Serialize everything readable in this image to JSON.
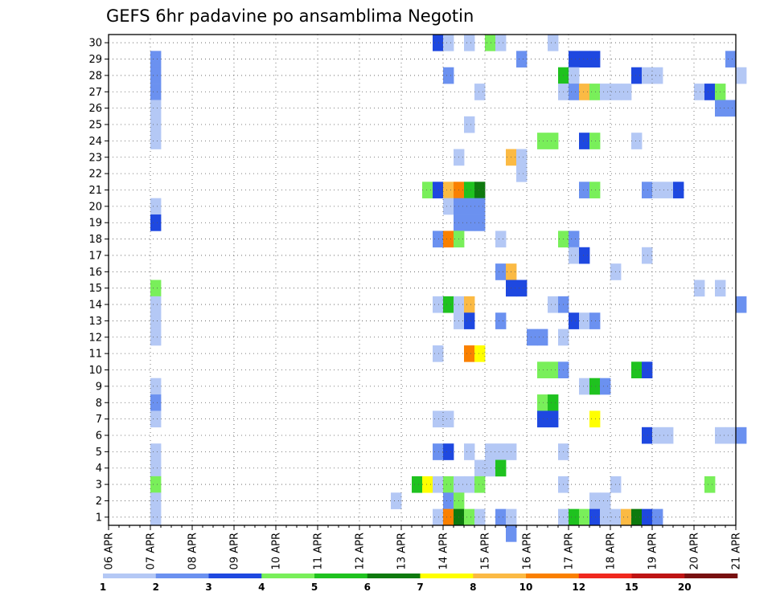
{
  "chart_data": {
    "type": "heatmap",
    "title": "GEFS 6hr padavine po ansamblima Negotin",
    "xlabel": "",
    "ylabel": "",
    "x_ticks": [
      "06 APR",
      "07 APR",
      "08 APR",
      "09 APR",
      "10 APR",
      "11 APR",
      "12 APR",
      "13 APR",
      "14 APR",
      "15 APR",
      "16 APR",
      "17 APR",
      "18 APR",
      "19 APR",
      "20 APR",
      "21 APR"
    ],
    "y_ticks": [
      "1",
      "2",
      "3",
      "4",
      "5",
      "6",
      "7",
      "8",
      "9",
      "10",
      "11",
      "12",
      "13",
      "14",
      "15",
      "16",
      "17",
      "18",
      "19",
      "20",
      "21",
      "22",
      "23",
      "24",
      "25",
      "26",
      "27",
      "28",
      "29",
      "30"
    ],
    "xlim": [
      "06 APR 00",
      "21 APR 00"
    ],
    "ylim": [
      0.5,
      30.5
    ],
    "grid": true,
    "colorbar": {
      "placement": "bottom",
      "labels": [
        "1",
        "2",
        "3",
        "4",
        "5",
        "6",
        "7",
        "8",
        "10",
        "12",
        "15",
        "20"
      ],
      "colors": [
        "#b4c8f5",
        "#6b91f0",
        "#1e48e0",
        "#79ef5a",
        "#1fc21f",
        "#0e7a0e",
        "#ffff00",
        "#fbba44",
        "#fa8000",
        "#f0281e",
        "#be1414",
        "#781010"
      ]
    },
    "cells": [
      {
        "m": 30,
        "t": "13 APR 18",
        "c": 2
      },
      {
        "m": 30,
        "t": "14 APR 00",
        "c": 0
      },
      {
        "m": 30,
        "t": "14 APR 12",
        "c": 0
      },
      {
        "m": 30,
        "t": "15 APR 00",
        "c": 3
      },
      {
        "m": 30,
        "t": "15 APR 06",
        "c": 0
      },
      {
        "m": 30,
        "t": "16 APR 12",
        "c": 0
      },
      {
        "m": 29,
        "t": "07 APR 00",
        "c": 1
      },
      {
        "m": 29,
        "t": "15 APR 18",
        "c": 1
      },
      {
        "m": 29,
        "t": "17 APR 00",
        "c": 2
      },
      {
        "m": 29,
        "t": "17 APR 06",
        "c": 2
      },
      {
        "m": 29,
        "t": "17 APR 12",
        "c": 2
      },
      {
        "m": 29,
        "t": "20 APR 18",
        "c": 1
      },
      {
        "m": 28,
        "t": "07 APR 00",
        "c": 1
      },
      {
        "m": 28,
        "t": "14 APR 00",
        "c": 1
      },
      {
        "m": 28,
        "t": "16 APR 18",
        "c": 4
      },
      {
        "m": 28,
        "t": "17 APR 00",
        "c": 0
      },
      {
        "m": 28,
        "t": "18 APR 12",
        "c": 2
      },
      {
        "m": 28,
        "t": "18 APR 18",
        "c": 0
      },
      {
        "m": 28,
        "t": "19 APR 00",
        "c": 0
      },
      {
        "m": 28,
        "t": "21 APR 00",
        "c": 0
      },
      {
        "m": 27,
        "t": "07 APR 00",
        "c": 1
      },
      {
        "m": 27,
        "t": "14 APR 18",
        "c": 0
      },
      {
        "m": 27,
        "t": "16 APR 18",
        "c": 0
      },
      {
        "m": 27,
        "t": "17 APR 00",
        "c": 1
      },
      {
        "m": 27,
        "t": "17 APR 06",
        "c": 7
      },
      {
        "m": 27,
        "t": "17 APR 12",
        "c": 3
      },
      {
        "m": 27,
        "t": "17 APR 18",
        "c": 0
      },
      {
        "m": 27,
        "t": "18 APR 00",
        "c": 0
      },
      {
        "m": 27,
        "t": "18 APR 06",
        "c": 0
      },
      {
        "m": 27,
        "t": "20 APR 00",
        "c": 0
      },
      {
        "m": 27,
        "t": "20 APR 06",
        "c": 2
      },
      {
        "m": 27,
        "t": "20 APR 12",
        "c": 3
      },
      {
        "m": 26,
        "t": "07 APR 00",
        "c": 0
      },
      {
        "m": 26,
        "t": "20 APR 12",
        "c": 1
      },
      {
        "m": 26,
        "t": "20 APR 18",
        "c": 1
      },
      {
        "m": 25,
        "t": "07 APR 00",
        "c": 0
      },
      {
        "m": 25,
        "t": "14 APR 12",
        "c": 0
      },
      {
        "m": 24,
        "t": "07 APR 00",
        "c": 0
      },
      {
        "m": 24,
        "t": "16 APR 06",
        "c": 3
      },
      {
        "m": 24,
        "t": "16 APR 12",
        "c": 3
      },
      {
        "m": 24,
        "t": "17 APR 06",
        "c": 2
      },
      {
        "m": 24,
        "t": "17 APR 12",
        "c": 3
      },
      {
        "m": 24,
        "t": "18 APR 12",
        "c": 0
      },
      {
        "m": 23,
        "t": "14 APR 06",
        "c": 0
      },
      {
        "m": 23,
        "t": "15 APR 12",
        "c": 7
      },
      {
        "m": 23,
        "t": "15 APR 18",
        "c": 0
      },
      {
        "m": 22,
        "t": "15 APR 18",
        "c": 0
      },
      {
        "m": 21,
        "t": "13 APR 12",
        "c": 3
      },
      {
        "m": 21,
        "t": "13 APR 18",
        "c": 2
      },
      {
        "m": 21,
        "t": "14 APR 00",
        "c": 7
      },
      {
        "m": 21,
        "t": "14 APR 06",
        "c": 8
      },
      {
        "m": 21,
        "t": "14 APR 12",
        "c": 4
      },
      {
        "m": 21,
        "t": "14 APR 18",
        "c": 5
      },
      {
        "m": 21,
        "t": "17 APR 06",
        "c": 1
      },
      {
        "m": 21,
        "t": "17 APR 12",
        "c": 3
      },
      {
        "m": 21,
        "t": "18 APR 18",
        "c": 1
      },
      {
        "m": 21,
        "t": "19 APR 00",
        "c": 0
      },
      {
        "m": 21,
        "t": "19 APR 06",
        "c": 0
      },
      {
        "m": 21,
        "t": "19 APR 12",
        "c": 2
      },
      {
        "m": 20,
        "t": "07 APR 00",
        "c": 0
      },
      {
        "m": 20,
        "t": "14 APR 00",
        "c": 0
      },
      {
        "m": 20,
        "t": "14 APR 06",
        "c": 1
      },
      {
        "m": 20,
        "t": "14 APR 12",
        "c": 1
      },
      {
        "m": 20,
        "t": "14 APR 18",
        "c": 1
      },
      {
        "m": 19,
        "t": "07 APR 00",
        "c": 2
      },
      {
        "m": 19,
        "t": "14 APR 06",
        "c": 1
      },
      {
        "m": 19,
        "t": "14 APR 12",
        "c": 1
      },
      {
        "m": 19,
        "t": "14 APR 18",
        "c": 1
      },
      {
        "m": 18,
        "t": "13 APR 18",
        "c": 1
      },
      {
        "m": 18,
        "t": "14 APR 00",
        "c": 8
      },
      {
        "m": 18,
        "t": "14 APR 06",
        "c": 3
      },
      {
        "m": 18,
        "t": "15 APR 06",
        "c": 0
      },
      {
        "m": 18,
        "t": "16 APR 18",
        "c": 3
      },
      {
        "m": 18,
        "t": "17 APR 00",
        "c": 1
      },
      {
        "m": 17,
        "t": "17 APR 00",
        "c": 0
      },
      {
        "m": 17,
        "t": "17 APR 06",
        "c": 2
      },
      {
        "m": 17,
        "t": "18 APR 18",
        "c": 0
      },
      {
        "m": 16,
        "t": "15 APR 06",
        "c": 1
      },
      {
        "m": 16,
        "t": "15 APR 12",
        "c": 7
      },
      {
        "m": 16,
        "t": "18 APR 00",
        "c": 0
      },
      {
        "m": 15,
        "t": "07 APR 00",
        "c": 3
      },
      {
        "m": 15,
        "t": "15 APR 12",
        "c": 2
      },
      {
        "m": 15,
        "t": "15 APR 18",
        "c": 2
      },
      {
        "m": 15,
        "t": "20 APR 00",
        "c": 0
      },
      {
        "m": 15,
        "t": "20 APR 12",
        "c": 0
      },
      {
        "m": 14,
        "t": "07 APR 00",
        "c": 0
      },
      {
        "m": 14,
        "t": "13 APR 18",
        "c": 0
      },
      {
        "m": 14,
        "t": "14 APR 00",
        "c": 4
      },
      {
        "m": 14,
        "t": "14 APR 06",
        "c": 0
      },
      {
        "m": 14,
        "t": "14 APR 12",
        "c": 7
      },
      {
        "m": 14,
        "t": "16 APR 12",
        "c": 0
      },
      {
        "m": 14,
        "t": "16 APR 18",
        "c": 1
      },
      {
        "m": 14,
        "t": "21 APR 00",
        "c": 1
      },
      {
        "m": 13,
        "t": "07 APR 00",
        "c": 0
      },
      {
        "m": 13,
        "t": "14 APR 06",
        "c": 0
      },
      {
        "m": 13,
        "t": "14 APR 12",
        "c": 2
      },
      {
        "m": 13,
        "t": "15 APR 06",
        "c": 1
      },
      {
        "m": 13,
        "t": "17 APR 00",
        "c": 2
      },
      {
        "m": 13,
        "t": "17 APR 06",
        "c": 0
      },
      {
        "m": 13,
        "t": "17 APR 12",
        "c": 1
      },
      {
        "m": 12,
        "t": "07 APR 00",
        "c": 0
      },
      {
        "m": 12,
        "t": "16 APR 00",
        "c": 1
      },
      {
        "m": 12,
        "t": "16 APR 06",
        "c": 1
      },
      {
        "m": 12,
        "t": "16 APR 18",
        "c": 0
      },
      {
        "m": 11,
        "t": "13 APR 18",
        "c": 0
      },
      {
        "m": 11,
        "t": "14 APR 12",
        "c": 8
      },
      {
        "m": 11,
        "t": "14 APR 18",
        "c": 6
      },
      {
        "m": 10,
        "t": "16 APR 06",
        "c": 3
      },
      {
        "m": 10,
        "t": "16 APR 12",
        "c": 3
      },
      {
        "m": 10,
        "t": "16 APR 18",
        "c": 1
      },
      {
        "m": 10,
        "t": "18 APR 12",
        "c": 4
      },
      {
        "m": 10,
        "t": "18 APR 18",
        "c": 2
      },
      {
        "m": 9,
        "t": "07 APR 00",
        "c": 0
      },
      {
        "m": 9,
        "t": "17 APR 06",
        "c": 0
      },
      {
        "m": 9,
        "t": "17 APR 12",
        "c": 4
      },
      {
        "m": 9,
        "t": "17 APR 18",
        "c": 1
      },
      {
        "m": 8,
        "t": "07 APR 00",
        "c": 1
      },
      {
        "m": 8,
        "t": "16 APR 06",
        "c": 3
      },
      {
        "m": 8,
        "t": "16 APR 12",
        "c": 4
      },
      {
        "m": 7,
        "t": "07 APR 00",
        "c": 0
      },
      {
        "m": 7,
        "t": "13 APR 18",
        "c": 0
      },
      {
        "m": 7,
        "t": "14 APR 00",
        "c": 0
      },
      {
        "m": 7,
        "t": "16 APR 06",
        "c": 2
      },
      {
        "m": 7,
        "t": "16 APR 12",
        "c": 2
      },
      {
        "m": 7,
        "t": "17 APR 12",
        "c": 6
      },
      {
        "m": 6,
        "t": "18 APR 18",
        "c": 2
      },
      {
        "m": 6,
        "t": "19 APR 00",
        "c": 0
      },
      {
        "m": 6,
        "t": "19 APR 06",
        "c": 0
      },
      {
        "m": 6,
        "t": "20 APR 12",
        "c": 0
      },
      {
        "m": 6,
        "t": "20 APR 18",
        "c": 0
      },
      {
        "m": 6,
        "t": "21 APR 00",
        "c": 1
      },
      {
        "m": 5,
        "t": "07 APR 00",
        "c": 0
      },
      {
        "m": 5,
        "t": "13 APR 18",
        "c": 1
      },
      {
        "m": 5,
        "t": "14 APR 00",
        "c": 2
      },
      {
        "m": 5,
        "t": "14 APR 12",
        "c": 0
      },
      {
        "m": 5,
        "t": "15 APR 00",
        "c": 0
      },
      {
        "m": 5,
        "t": "15 APR 06",
        "c": 0
      },
      {
        "m": 5,
        "t": "15 APR 12",
        "c": 0
      },
      {
        "m": 5,
        "t": "16 APR 18",
        "c": 0
      },
      {
        "m": 4,
        "t": "07 APR 00",
        "c": 0
      },
      {
        "m": 4,
        "t": "14 APR 18",
        "c": 0
      },
      {
        "m": 4,
        "t": "15 APR 00",
        "c": 0
      },
      {
        "m": 4,
        "t": "15 APR 06",
        "c": 4
      },
      {
        "m": 3,
        "t": "07 APR 00",
        "c": 3
      },
      {
        "m": 3,
        "t": "13 APR 06",
        "c": 4
      },
      {
        "m": 3,
        "t": "13 APR 12",
        "c": 6
      },
      {
        "m": 3,
        "t": "13 APR 18",
        "c": 0
      },
      {
        "m": 3,
        "t": "14 APR 00",
        "c": 3
      },
      {
        "m": 3,
        "t": "14 APR 06",
        "c": 0
      },
      {
        "m": 3,
        "t": "14 APR 12",
        "c": 0
      },
      {
        "m": 3,
        "t": "14 APR 18",
        "c": 3
      },
      {
        "m": 3,
        "t": "16 APR 18",
        "c": 0
      },
      {
        "m": 3,
        "t": "18 APR 00",
        "c": 0
      },
      {
        "m": 3,
        "t": "20 APR 06",
        "c": 3
      },
      {
        "m": 2,
        "t": "07 APR 00",
        "c": 0
      },
      {
        "m": 2,
        "t": "12 APR 18",
        "c": 0
      },
      {
        "m": 2,
        "t": "14 APR 00",
        "c": 1
      },
      {
        "m": 2,
        "t": "14 APR 06",
        "c": 3
      },
      {
        "m": 2,
        "t": "17 APR 12",
        "c": 0
      },
      {
        "m": 2,
        "t": "17 APR 18",
        "c": 0
      },
      {
        "m": 1,
        "t": "07 APR 00",
        "c": 0
      },
      {
        "m": 1,
        "t": "13 APR 18",
        "c": 0
      },
      {
        "m": 1,
        "t": "14 APR 00",
        "c": 8
      },
      {
        "m": 1,
        "t": "14 APR 06",
        "c": 5
      },
      {
        "m": 1,
        "t": "14 APR 12",
        "c": 3
      },
      {
        "m": 1,
        "t": "14 APR 18",
        "c": 0
      },
      {
        "m": 1,
        "t": "15 APR 06",
        "c": 1
      },
      {
        "m": 1,
        "t": "15 APR 12",
        "c": 0
      },
      {
        "m": 1,
        "t": "16 APR 18",
        "c": 0
      },
      {
        "m": 1,
        "t": "17 APR 00",
        "c": 4
      },
      {
        "m": 1,
        "t": "17 APR 06",
        "c": 3
      },
      {
        "m": 1,
        "t": "17 APR 12",
        "c": 2
      },
      {
        "m": 1,
        "t": "17 APR 18",
        "c": 0
      },
      {
        "m": 1,
        "t": "18 APR 00",
        "c": 0
      },
      {
        "m": 1,
        "t": "18 APR 06",
        "c": 7
      },
      {
        "m": 1,
        "t": "18 APR 12",
        "c": 5
      },
      {
        "m": 1,
        "t": "18 APR 18",
        "c": 2
      },
      {
        "m": 1,
        "t": "19 APR 00",
        "c": 1
      },
      {
        "m": 0,
        "t": "15 APR 12",
        "c": 1
      }
    ]
  }
}
